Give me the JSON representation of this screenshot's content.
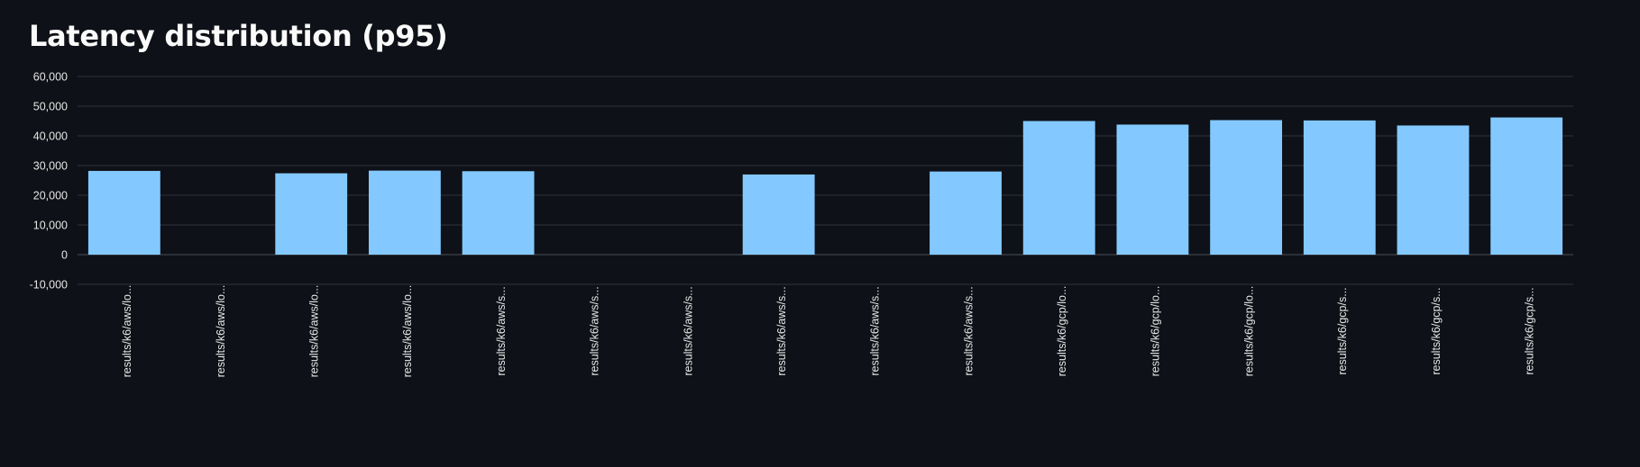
{
  "page": {
    "title": "Latency distribution (p95)"
  },
  "colors": {
    "background": "#0e1117",
    "bar": "#83c9ff",
    "text": "#fafafa",
    "grid": "#30343d"
  },
  "chart_data": {
    "type": "bar",
    "title": "Latency distribution (p95)",
    "xlabel": "",
    "ylabel": "",
    "ylim": [
      -20000,
      60000
    ],
    "yticks": [
      60000,
      50000,
      40000,
      30000,
      20000,
      10000,
      0,
      -10000
    ],
    "ytick_labels": [
      "60,000",
      "50,000",
      "40,000",
      "30,000",
      "20,000",
      "10,000",
      "0",
      "-10,000"
    ],
    "grid": true,
    "legend": "none",
    "categories": [
      "results/k6/aws/lo...",
      "results/k6/aws/lo...",
      "results/k6/aws/lo...",
      "results/k6/aws/lo...",
      "results/k6/aws/s...",
      "results/k6/aws/s...",
      "results/k6/aws/s...",
      "results/k6/aws/s...",
      "results/k6/aws/s...",
      "results/k6/aws/s...",
      "results/k6/gcp/lo...",
      "results/k6/gcp/lo...",
      "results/k6/gcp/lo...",
      "results/k6/gcp/s...",
      "results/k6/gcp/s...",
      "results/k6/gcp/s..."
    ],
    "values": [
      28200,
      null,
      27400,
      28300,
      28100,
      null,
      null,
      27000,
      null,
      28000,
      45000,
      43800,
      45300,
      45200,
      43500,
      46200
    ]
  }
}
